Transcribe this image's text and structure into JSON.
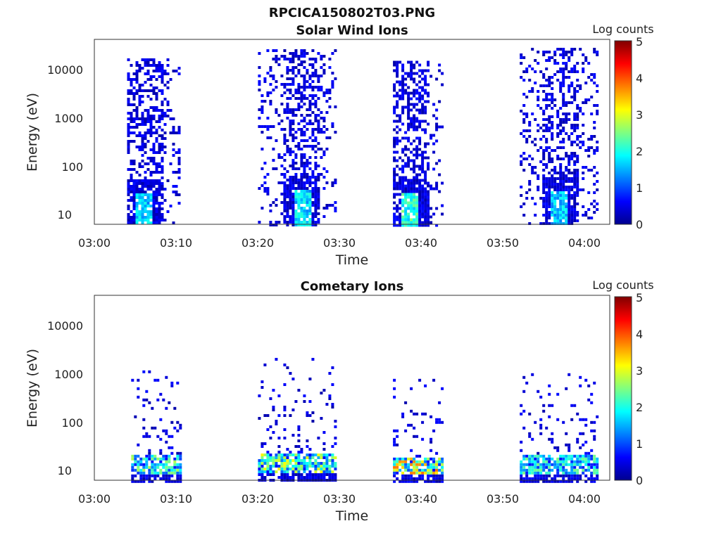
{
  "figure_title": "RPCICA150802T03.PNG",
  "chart_data": [
    {
      "type": "heatmap",
      "title": "Solar Wind Ions",
      "xlabel": "Time",
      "ylabel": "Energy (eV)",
      "x_ticks": [
        "03:00",
        "03:10",
        "03:20",
        "03:30",
        "03:40",
        "03:50",
        "04:00"
      ],
      "x_range_minutes": [
        0,
        63
      ],
      "y_ticks": [
        "10",
        "100",
        "1000",
        "10000"
      ],
      "y_scale": "log",
      "y_range_ev": [
        6,
        45000
      ],
      "colorbar": {
        "label": "Log counts",
        "ticks": [
          "0",
          "1",
          "2",
          "3",
          "4",
          "5"
        ],
        "range": [
          0,
          5
        ],
        "colormap": "jet"
      },
      "bursts": [
        {
          "t_start": 4.0,
          "t_end": 10.5,
          "e_max_ev": 18000,
          "core_minute": 6.0,
          "core_peak_log": 2.0
        },
        {
          "t_start": 20.0,
          "t_end": 29.5,
          "e_max_ev": 28000,
          "core_minute": 25.3,
          "core_peak_log": 2.1
        },
        {
          "t_start": 36.5,
          "t_end": 42.5,
          "e_max_ev": 16000,
          "core_minute": 38.5,
          "core_peak_log": 2.6
        },
        {
          "t_start": 52.0,
          "t_end": 61.5,
          "e_max_ev": 30000,
          "core_minute": 56.7,
          "core_peak_log": 2.0
        }
      ]
    },
    {
      "type": "heatmap",
      "title": "Cometary Ions",
      "xlabel": "Time",
      "ylabel": "Energy (eV)",
      "x_ticks": [
        "03:00",
        "03:10",
        "03:20",
        "03:30",
        "03:40",
        "03:50",
        "04:00"
      ],
      "x_range_minutes": [
        0,
        63
      ],
      "y_ticks": [
        "10",
        "100",
        "1000",
        "10000"
      ],
      "y_scale": "log",
      "y_range_ev": [
        6,
        45000
      ],
      "colorbar": {
        "label": "Log counts",
        "ticks": [
          "0",
          "1",
          "2",
          "3",
          "4",
          "5"
        ],
        "range": [
          0,
          5
        ],
        "colormap": "jet"
      },
      "bursts": [
        {
          "t_start": 4.5,
          "t_end": 10.5,
          "e_max_ev": 1200,
          "core_minute": 8.8,
          "core_peak_log": 2.8
        },
        {
          "t_start": 20.0,
          "t_end": 29.5,
          "e_max_ev": 2200,
          "core_minute": 21.8,
          "core_peak_log": 3.2
        },
        {
          "t_start": 36.5,
          "t_end": 42.5,
          "e_max_ev": 800,
          "core_minute": 40.0,
          "core_peak_log": 3.9
        },
        {
          "t_start": 52.0,
          "t_end": 61.5,
          "e_max_ev": 1200,
          "core_minute": 59.5,
          "core_peak_log": 2.5
        }
      ]
    }
  ]
}
